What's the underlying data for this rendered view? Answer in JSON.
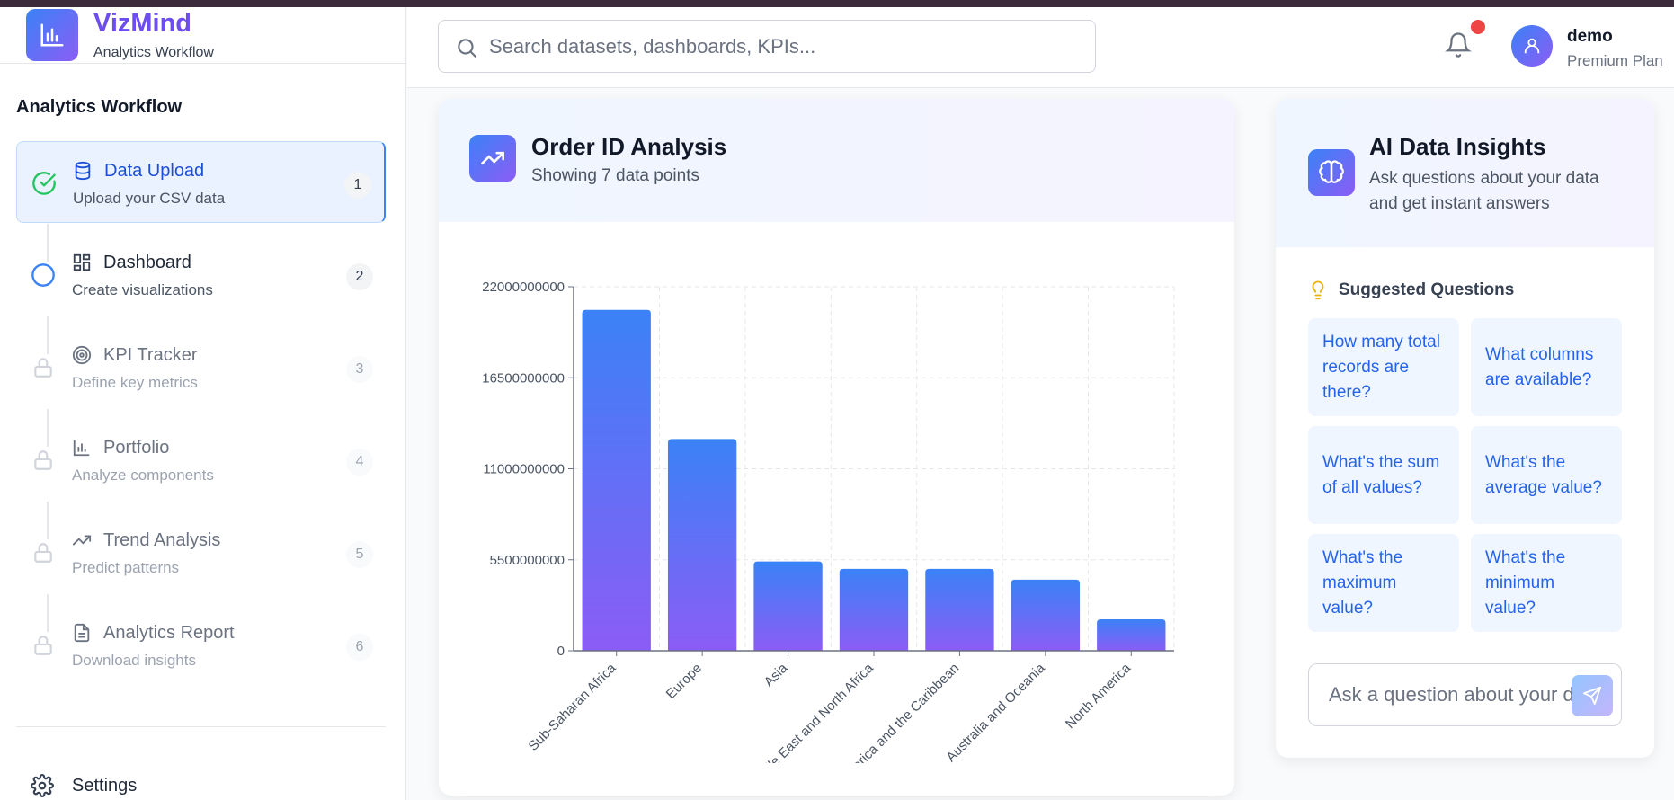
{
  "brand": {
    "name": "VizMind",
    "subtitle": "Analytics Workflow"
  },
  "sidebar": {
    "title": "Analytics Workflow",
    "steps": [
      {
        "title": "Data Upload",
        "desc": "Upload your CSV data",
        "num": "1",
        "status": "complete",
        "icon": "database-icon"
      },
      {
        "title": "Dashboard",
        "desc": "Create visualizations",
        "num": "2",
        "status": "current",
        "icon": "dashboard-icon"
      },
      {
        "title": "KPI Tracker",
        "desc": "Define key metrics",
        "num": "3",
        "status": "locked",
        "icon": "target-icon"
      },
      {
        "title": "Portfolio",
        "desc": "Analyze components",
        "num": "4",
        "status": "locked",
        "icon": "bar-chart-icon"
      },
      {
        "title": "Trend Analysis",
        "desc": "Predict patterns",
        "num": "5",
        "status": "locked",
        "icon": "trending-up-icon"
      },
      {
        "title": "Analytics Report",
        "desc": "Download insights",
        "num": "6",
        "status": "locked",
        "icon": "file-text-icon"
      }
    ],
    "settings_label": "Settings"
  },
  "header": {
    "search_placeholder": "Search datasets, dashboards, KPIs...",
    "user_name": "demo",
    "user_plan": "Premium Plan"
  },
  "chart_card": {
    "title": "Order ID Analysis",
    "subtitle": "Showing 7 data points"
  },
  "chart_data": {
    "type": "bar",
    "categories": [
      "Sub-Saharan Africa",
      "Europe",
      "Asia",
      "Middle East and North Africa",
      "Central America and the Caribbean",
      "Australia and Oceania",
      "North America"
    ],
    "values": [
      20600000000,
      12800000000,
      5400000000,
      4950000000,
      4950000000,
      4300000000,
      1900000000
    ],
    "yticks": [
      "0",
      "5500000000",
      "11000000000",
      "16500000000",
      "22000000000"
    ],
    "ylim": [
      0,
      22000000000
    ],
    "grid": true,
    "colors": {
      "top": "#3b82f6",
      "bottom": "#8b5cf6"
    }
  },
  "ai": {
    "title": "AI Data Insights",
    "subtitle": "Ask questions about your data and get instant answers",
    "suggested_title": "Suggested Questions",
    "questions": [
      "How many total records are there?",
      "What columns are available?",
      "What's the sum of all values?",
      "What's the average value?",
      "What's the maximum value?",
      "What's the minimum value?"
    ],
    "ask_placeholder": "Ask a question about your data..."
  }
}
